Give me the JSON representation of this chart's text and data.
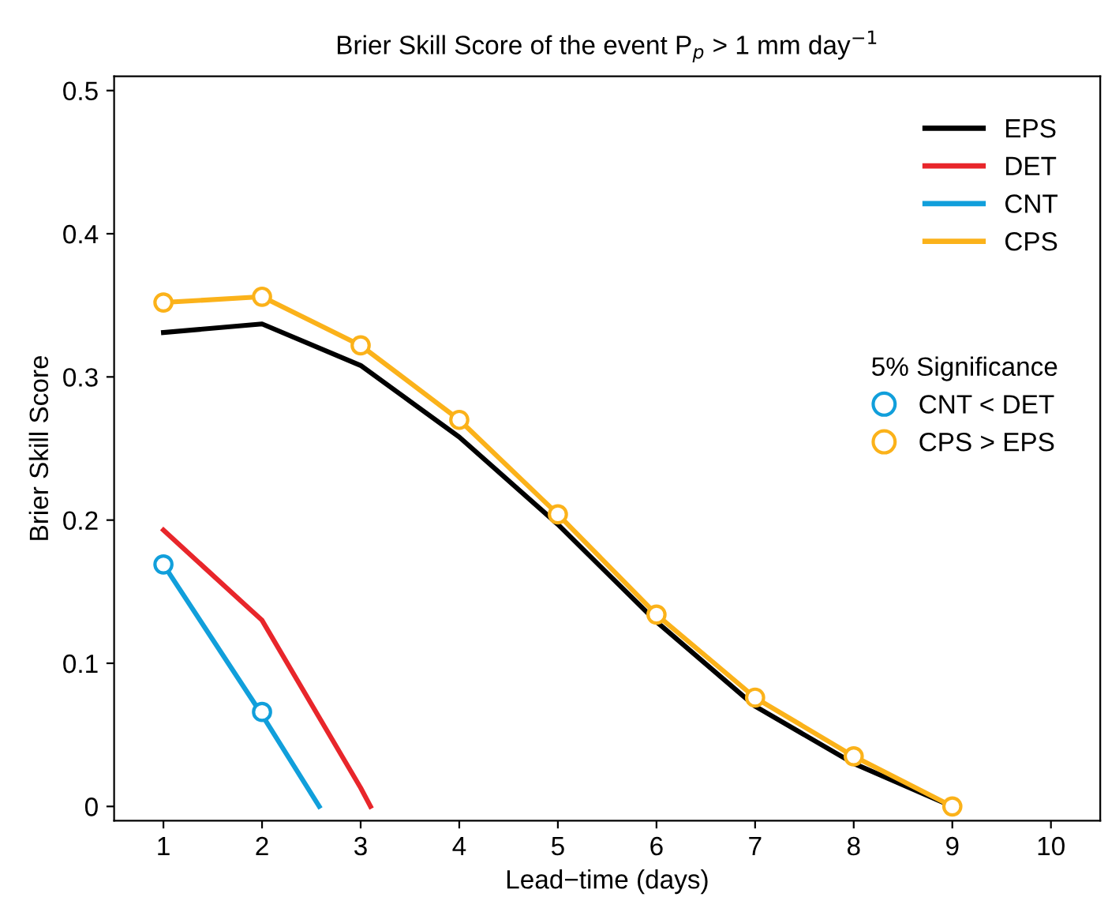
{
  "chart_data": {
    "type": "line",
    "title": "Brier Skill Score of the event P$_{p}$ > 1 mm day$^{−1}$",
    "xlabel": "Lead−time (days)",
    "ylabel": "Brier Skill Score",
    "legend_title": "5% Significance",
    "x": [
      1,
      2,
      3,
      4,
      5,
      6,
      7,
      8,
      9
    ],
    "series": [
      {
        "name": "EPS",
        "color": "#000000",
        "values": [
          0.331,
          0.337,
          0.308,
          0.258,
          0.197,
          0.129,
          0.07,
          0.03,
          0
        ]
      },
      {
        "name": "DET",
        "color": "#e8262b",
        "x": [
          1,
          2,
          3,
          3.1
        ],
        "values": [
          0.193,
          0.13,
          0.013,
          0
        ]
      },
      {
        "name": "CNT",
        "color": "#119fdb",
        "x": [
          1,
          2,
          2.58
        ],
        "values": [
          0.169,
          0.064,
          0
        ]
      },
      {
        "name": "CPS",
        "color": "#fbb21a",
        "values": [
          0.352,
          0.356,
          0.322,
          0.27,
          0.204,
          0.134,
          0.076,
          0.035,
          0
        ]
      },
      {
        "name": "CNT < DET",
        "type": "scatter",
        "marker": "circle",
        "color": "#119fdb",
        "x": [
          1,
          2
        ],
        "values": [
          0.169,
          0.066
        ]
      },
      {
        "name": "CPS > EPS",
        "type": "scatter",
        "marker": "circle",
        "color": "#fbb21a",
        "values": [
          0.352,
          0.356,
          0.322,
          0.27,
          0.204,
          0.134,
          0.076,
          0.035,
          0
        ]
      }
    ],
    "xlim": [
      0.5,
      10.5
    ],
    "xticks": [
      1,
      2,
      3,
      4,
      5,
      6,
      7,
      8,
      9,
      10
    ],
    "ylim": [
      -0.01,
      0.51
    ],
    "yticks": [
      0,
      0.1,
      0.2,
      0.3,
      0.4,
      0.5
    ],
    "grid": false,
    "legend": "top right"
  }
}
